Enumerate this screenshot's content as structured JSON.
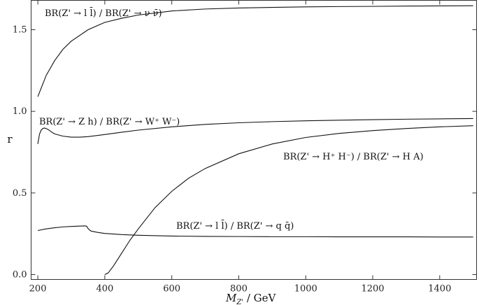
{
  "chart_data": {
    "type": "line",
    "xlabel": "M_{Z'} / GeV",
    "xlabel_main": "M",
    "xlabel_sub": "Z'",
    "xlabel_unit": " / GeV",
    "ylabel": "r",
    "xlim": [
      180,
      1510
    ],
    "ylim": [
      -0.03,
      1.68
    ],
    "xticks": [
      200,
      400,
      600,
      800,
      1000,
      1200,
      1400
    ],
    "yticks": [
      0.0,
      0.5,
      1.0,
      1.5
    ],
    "ytick_labels": [
      "0.0",
      "0.5",
      "1.0",
      "1.5"
    ],
    "grid": false,
    "series": [
      {
        "name": "BR(Z' → l l̄) / BR(Z' → ν ν̄)",
        "x": [
          200,
          225,
          250,
          275,
          300,
          350,
          400,
          450,
          500,
          600,
          700,
          800,
          900,
          1000,
          1100,
          1200,
          1300,
          1400,
          1500
        ],
        "y": [
          1.09,
          1.22,
          1.31,
          1.38,
          1.43,
          1.5,
          1.545,
          1.57,
          1.59,
          1.615,
          1.627,
          1.633,
          1.637,
          1.64,
          1.642,
          1.643,
          1.645,
          1.646,
          1.647
        ]
      },
      {
        "name": "BR(Z' → Z h) / BR(Z' → W⁺ W⁻)",
        "x": [
          200,
          205,
          210,
          215,
          220,
          230,
          240,
          250,
          275,
          300,
          325,
          350,
          400,
          450,
          500,
          600,
          700,
          800,
          900,
          1000,
          1100,
          1200,
          1300,
          1400,
          1500
        ],
        "y": [
          0.8,
          0.86,
          0.885,
          0.895,
          0.898,
          0.89,
          0.875,
          0.862,
          0.848,
          0.842,
          0.842,
          0.845,
          0.858,
          0.872,
          0.885,
          0.905,
          0.92,
          0.93,
          0.937,
          0.942,
          0.946,
          0.949,
          0.952,
          0.954,
          0.956
        ]
      },
      {
        "name": "BR(Z' → H⁺ H⁻) / BR(Z' → H A)",
        "x": [
          400,
          410,
          425,
          450,
          475,
          500,
          550,
          600,
          650,
          700,
          800,
          900,
          1000,
          1100,
          1200,
          1300,
          1400,
          1500
        ],
        "y": [
          0.0,
          0.01,
          0.05,
          0.13,
          0.21,
          0.28,
          0.41,
          0.51,
          0.59,
          0.65,
          0.74,
          0.8,
          0.84,
          0.865,
          0.882,
          0.895,
          0.905,
          0.912
        ]
      },
      {
        "name": "BR(Z' → l l̄) / BR(Z' → q q̄)",
        "x": [
          200,
          225,
          250,
          275,
          300,
          325,
          340,
          345,
          348,
          350,
          355,
          360,
          380,
          400,
          450,
          500,
          600,
          700,
          800,
          900,
          1000,
          1100,
          1200,
          1300,
          1400,
          1500
        ],
        "y": [
          0.27,
          0.28,
          0.287,
          0.292,
          0.295,
          0.297,
          0.298,
          0.297,
          0.29,
          0.282,
          0.272,
          0.266,
          0.258,
          0.252,
          0.245,
          0.241,
          0.236,
          0.234,
          0.233,
          0.232,
          0.232,
          0.231,
          0.231,
          0.231,
          0.23,
          0.23
        ]
      }
    ],
    "annotations": [
      "BR(Z' → l l̄) / BR(Z' → ν ν̄)",
      "BR(Z' → Z h) / BR(Z' → W⁺ W⁻)",
      "BR(Z' → H⁺ H⁻) / BR(Z' → H A)",
      "BR(Z' → l l̄) / BR(Z' → q q̄)"
    ]
  }
}
